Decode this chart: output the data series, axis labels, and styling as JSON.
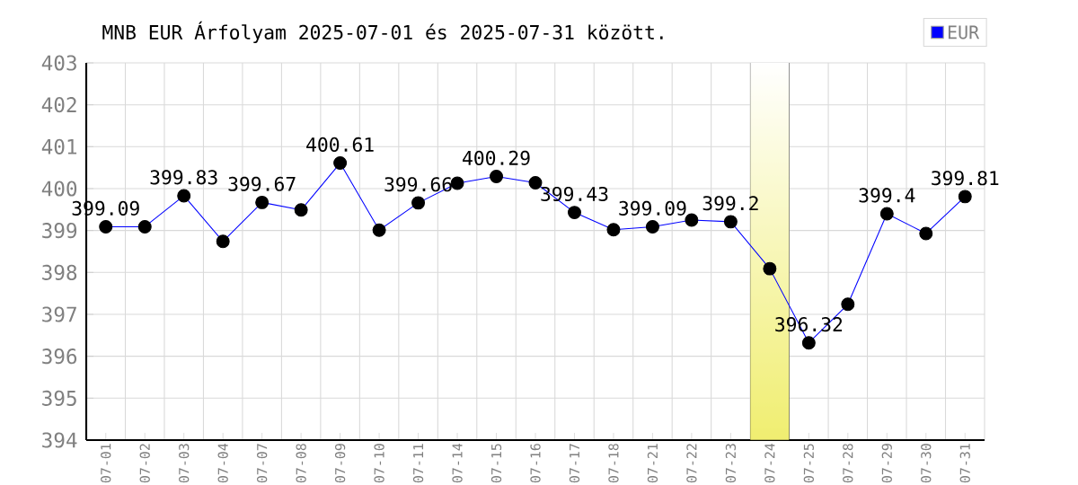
{
  "chart_data": {
    "type": "line",
    "title": "MNB EUR Árfolyam 2025-07-01 és 2025-07-31 között.",
    "categories": [
      "07-01",
      "07-02",
      "07-03",
      "07-04",
      "07-07",
      "07-08",
      "07-09",
      "07-10",
      "07-11",
      "07-14",
      "07-15",
      "07-16",
      "07-17",
      "07-18",
      "07-21",
      "07-22",
      "07-23",
      "07-24",
      "07-25",
      "07-28",
      "07-29",
      "07-30",
      "07-31"
    ],
    "series": [
      {
        "name": "EUR",
        "color": "#0000ff",
        "values": [
          399.09,
          399.09,
          399.83,
          398.74,
          399.67,
          399.49,
          400.61,
          399.01,
          399.66,
          400.13,
          400.29,
          400.14,
          399.43,
          399.02,
          399.09,
          399.25,
          399.21,
          398.09,
          396.32,
          397.24,
          399.4,
          398.93,
          399.81
        ],
        "value_labels": [
          "399.09",
          null,
          "399.83",
          null,
          "399.67",
          null,
          "400.61",
          null,
          "399.66",
          null,
          "400.29",
          null,
          "399.43",
          null,
          "399.09",
          null,
          "399.2",
          null,
          "396.32",
          null,
          "399.4",
          null,
          "399.81"
        ]
      }
    ],
    "ylim": [
      394,
      403
    ],
    "yticks": [
      394,
      395,
      396,
      397,
      398,
      399,
      400,
      401,
      402,
      403
    ],
    "bands": [
      {
        "axis": "x",
        "from": "07-24",
        "to": "07-24",
        "color": "#f0ee70"
      }
    ],
    "grid": true,
    "legend": "top right",
    "marker": "circle",
    "line_style": "solid"
  }
}
